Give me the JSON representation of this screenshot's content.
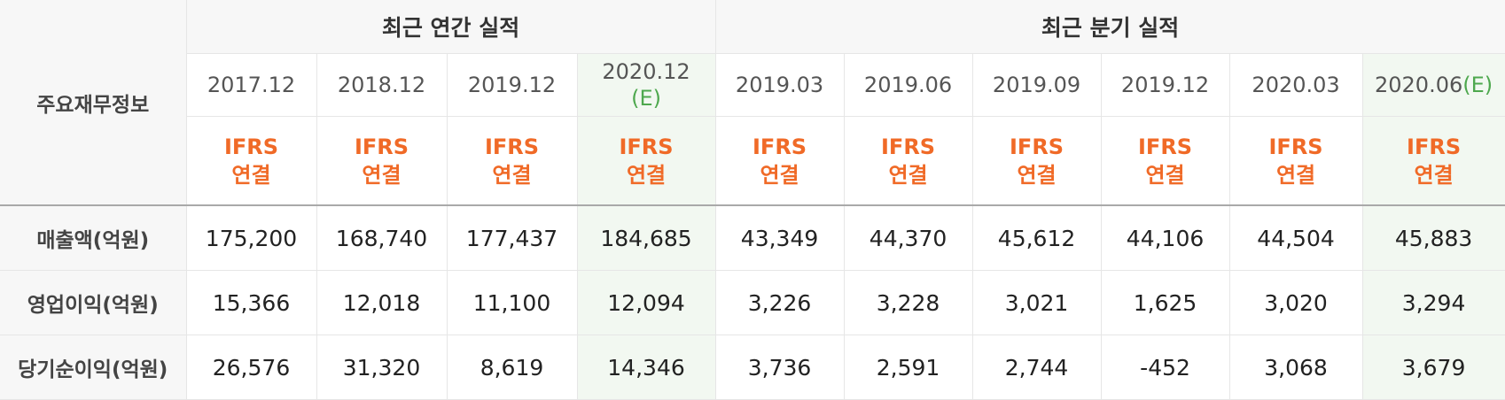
{
  "header": {
    "row_title": "주요재무정보",
    "annual_group": "최근 연간 실적",
    "quarterly_group": "최근 분기 실적"
  },
  "columns": [
    {
      "period": "2017.12",
      "estimate": "",
      "std1": "IFRS",
      "std2": "연결"
    },
    {
      "period": "2018.12",
      "estimate": "",
      "std1": "IFRS",
      "std2": "연결"
    },
    {
      "period": "2019.12",
      "estimate": "",
      "std1": "IFRS",
      "std2": "연결"
    },
    {
      "period": "2020.12",
      "estimate": "(E)",
      "std1": "IFRS",
      "std2": "연결"
    },
    {
      "period": "2019.03",
      "estimate": "",
      "std1": "IFRS",
      "std2": "연결"
    },
    {
      "period": "2019.06",
      "estimate": "",
      "std1": "IFRS",
      "std2": "연결"
    },
    {
      "period": "2019.09",
      "estimate": "",
      "std1": "IFRS",
      "std2": "연결"
    },
    {
      "period": "2019.12",
      "estimate": "",
      "std1": "IFRS",
      "std2": "연결"
    },
    {
      "period": "2020.03",
      "estimate": "",
      "std1": "IFRS",
      "std2": "연결"
    },
    {
      "period": "2020.06",
      "estimate": "(E)",
      "std1": "IFRS",
      "std2": "연결"
    }
  ],
  "rows": [
    {
      "label": "매출액(억원)",
      "values": [
        "175,200",
        "168,740",
        "177,437",
        "184,685",
        "43,349",
        "44,370",
        "45,612",
        "44,106",
        "44,504",
        "45,883"
      ]
    },
    {
      "label": "영업이익(억원)",
      "values": [
        "15,366",
        "12,018",
        "11,100",
        "12,094",
        "3,226",
        "3,228",
        "3,021",
        "1,625",
        "3,020",
        "3,294"
      ]
    },
    {
      "label": "당기순이익(억원)",
      "values": [
        "26,576",
        "31,320",
        "8,619",
        "14,346",
        "3,736",
        "2,591",
        "2,744",
        "-452",
        "3,068",
        "3,679"
      ]
    }
  ],
  "colors": {
    "standard_text": "#f06a27",
    "estimate_bg": "#f2f8f1",
    "estimate_mark": "#4ea84e",
    "negative": "#e02020"
  }
}
